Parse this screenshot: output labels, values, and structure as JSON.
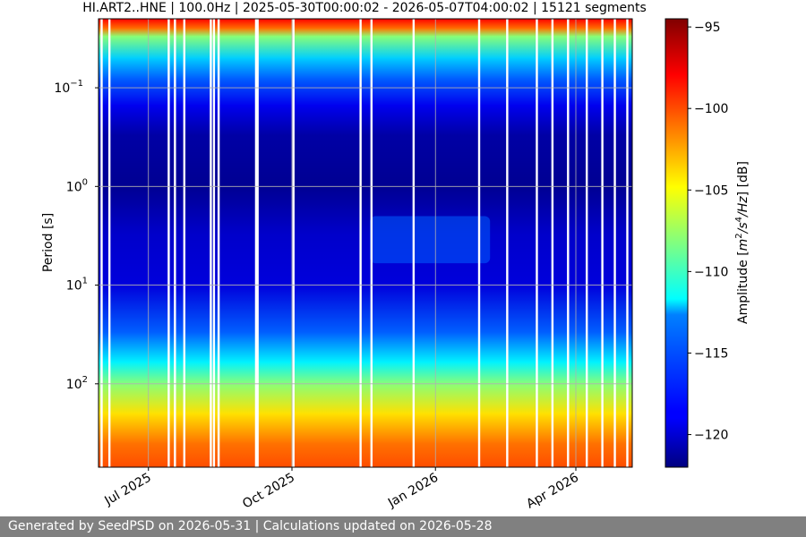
{
  "chart_data": {
    "type": "heatmap",
    "title": "HI.ART2..HNE | 100.0Hz | 2025-05-30T00:00:02 - 2026-05-07T04:00:02 | 15121 segments",
    "xlabel": "",
    "ylabel": "Period [s]",
    "x_range": [
      "2025-05-30T00:00:02",
      "2026-05-07T04:00:02"
    ],
    "x_ticks": [
      {
        "date": "2025-07-01",
        "label": "Jul 2025"
      },
      {
        "date": "2025-10-01",
        "label": "Oct 2025"
      },
      {
        "date": "2026-01-01",
        "label": "Jan 2026"
      },
      {
        "date": "2026-04-01",
        "label": "Apr 2026"
      }
    ],
    "y_scale": "log",
    "y_inverted": true,
    "y_range": [
      0.02,
      700
    ],
    "y_ticks": [
      {
        "value": 0.1,
        "base": "10",
        "exp": "−1"
      },
      {
        "value": 1,
        "base": "10",
        "exp": "0"
      },
      {
        "value": 10,
        "base": "10",
        "exp": "1"
      },
      {
        "value": 100,
        "base": "10",
        "exp": "2"
      }
    ],
    "grid": true,
    "colormap": "jet",
    "colorbar": {
      "label_prefix": "Amplitude [",
      "label_unit_base": "m",
      "label_unit_exp1": "2",
      "label_unit_mid": "/s",
      "label_unit_exp2": "4",
      "label_unit_end": "/Hz",
      "label_suffix": "] [dB]",
      "range": [
        -122,
        -94.5
      ],
      "ticks": [
        {
          "value": -95,
          "label": "−95"
        },
        {
          "value": -100,
          "label": "−100"
        },
        {
          "value": -105,
          "label": "−105"
        },
        {
          "value": -110,
          "label": "−110"
        },
        {
          "value": -115,
          "label": "−115"
        },
        {
          "value": -120,
          "label": "−120"
        }
      ]
    },
    "psd_profile": {
      "period_s": [
        0.02,
        0.025,
        0.03,
        0.05,
        0.08,
        0.15,
        0.3,
        1,
        3,
        10,
        30,
        60,
        100,
        200,
        400,
        700
      ],
      "amplitude_db": [
        -98,
        -101,
        -108,
        -113,
        -116,
        -119,
        -121,
        -121.5,
        -120,
        -119.5,
        -116,
        -112,
        -108,
        -104,
        -101,
        -100
      ]
    },
    "events": [
      {
        "start": "2025-11-20",
        "end": "2026-02-05",
        "period_s": [
          2,
          6
        ],
        "amplitude_db": -116
      }
    ],
    "data_gaps": [
      "2025-06-01",
      "2025-06-06",
      "2025-07-14",
      "2025-07-18",
      "2025-07-24",
      "2025-08-10",
      "2025-08-12",
      "2025-08-15",
      "2025-09-08",
      "2025-09-09",
      "2025-10-02",
      "2025-11-14",
      "2025-11-21",
      "2025-12-18",
      "2026-01-29",
      "2026-02-16",
      "2026-03-07",
      "2026-03-17",
      "2026-03-27",
      "2026-04-08",
      "2026-04-18",
      "2026-04-26",
      "2026-05-04"
    ]
  },
  "footer": {
    "text": "Generated by SeedPSD on 2026-05-31 | Calculations updated on 2026-05-28"
  }
}
